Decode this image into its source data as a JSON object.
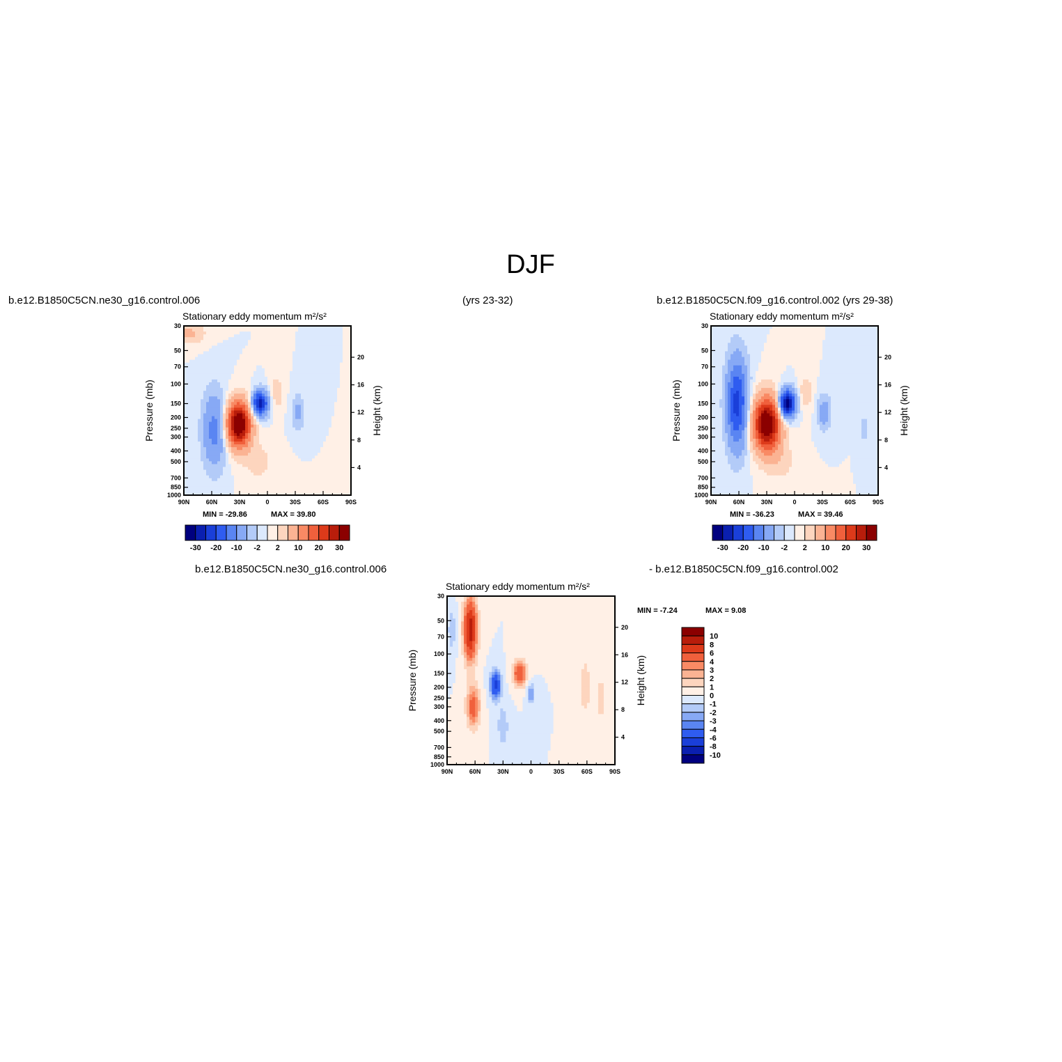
{
  "figure": {
    "title": "DJF",
    "panel1_case": "b.e12.B1850C5CN.ne30_g16.control.006",
    "years1": "(yrs 23-32)",
    "panel2_case": "b.e12.B1850C5CN.f09_g16.control.002 (yrs 29-38)",
    "diff_case_a": "b.e12.B1850C5CN.ne30_g16.control.006",
    "diff_case_b": "- b.e12.B1850C5CN.f09_g16.control.002"
  },
  "colors": {
    "neg": [
      "#00007f",
      "#0a1fb0",
      "#1a3fd9",
      "#2f5cf0",
      "#5a85f2",
      "#87a9f5",
      "#b3cbf8",
      "#dce9fd"
    ],
    "pos": [
      "#fff0e6",
      "#fdd5be",
      "#fbb393",
      "#f98a64",
      "#f0603c",
      "#dd3a1a",
      "#b81d0b",
      "#8b0000"
    ],
    "frame": "#000000"
  },
  "chart_data": [
    {
      "type": "heatmap",
      "id": "p1",
      "title": "Stationary eddy momentum  m²/s²",
      "ylabel": "Pressure (mb)",
      "ylabel_right": "Height (km)",
      "x_ticks": [
        "90N",
        "60N",
        "30N",
        "0",
        "30S",
        "60S",
        "90S"
      ],
      "y_ticks": [
        "30",
        "50",
        "70",
        "100",
        "150",
        "200",
        "250",
        "300",
        "400",
        "500",
        "700",
        "850",
        "1000"
      ],
      "yr_ticks": [
        "20",
        "16",
        "12",
        "8",
        "4"
      ],
      "min_label": "MIN =  -29.86",
      "max_label": "MAX =   39.80",
      "min": -29.86,
      "max": 39.8,
      "colorbar_labels": [
        "-30",
        "-20",
        "-10",
        "-2",
        "2",
        "10",
        "20",
        "30"
      ],
      "features": [
        {
          "lat": 57,
          "p": 260,
          "value": -12,
          "dlat": 9,
          "dlogp": 0.55
        },
        {
          "lat": 31,
          "p": 230,
          "value": 38,
          "dlat": 9,
          "dlogp": 0.32
        },
        {
          "lat": 8,
          "p": 150,
          "value": -28,
          "dlat": 6,
          "dlogp": 0.18
        },
        {
          "lat": -33,
          "p": 180,
          "value": -6,
          "dlat": 5,
          "dlogp": 0.25
        },
        {
          "lat": 85,
          "p": 35,
          "value": 6,
          "dlat": 12,
          "dlogp": 0.15
        },
        {
          "lat": -10,
          "p": 120,
          "value": 4,
          "dlat": 5,
          "dlogp": 0.25
        },
        {
          "lat": 10,
          "p": 500,
          "value": 3,
          "dlat": 12,
          "dlogp": 0.3
        }
      ]
    },
    {
      "type": "heatmap",
      "id": "p2",
      "title": "Stationary eddy momentum  m²/s²",
      "ylabel": "Pressure (mb)",
      "ylabel_right": "Height (km)",
      "x_ticks": [
        "90N",
        "60N",
        "30N",
        "0",
        "30S",
        "60S",
        "90S"
      ],
      "y_ticks": [
        "30",
        "50",
        "70",
        "100",
        "150",
        "200",
        "250",
        "300",
        "400",
        "500",
        "700",
        "850",
        "1000"
      ],
      "yr_ticks": [
        "20",
        "16",
        "12",
        "8",
        "4"
      ],
      "min_label": "MIN =  -36.23",
      "max_label": "MAX =   39.46",
      "min": -36.23,
      "max": 39.46,
      "colorbar_labels": [
        "-30",
        "-20",
        "-10",
        "-2",
        "2",
        "10",
        "20",
        "30"
      ],
      "features": [
        {
          "lat": 62,
          "p": 150,
          "value": -22,
          "dlat": 8,
          "dlogp": 0.65
        },
        {
          "lat": 30,
          "p": 230,
          "value": 38,
          "dlat": 10,
          "dlogp": 0.38
        },
        {
          "lat": 8,
          "p": 150,
          "value": -34,
          "dlat": 6,
          "dlogp": 0.2
        },
        {
          "lat": -32,
          "p": 180,
          "value": -8,
          "dlat": 5,
          "dlogp": 0.25
        },
        {
          "lat": -75,
          "p": 250,
          "value": -4,
          "dlat": 3,
          "dlogp": 0.2
        },
        {
          "lat": -12,
          "p": 120,
          "value": 4,
          "dlat": 5,
          "dlogp": 0.25
        },
        {
          "lat": 15,
          "p": 500,
          "value": 3,
          "dlat": 12,
          "dlogp": 0.3
        }
      ]
    },
    {
      "type": "heatmap",
      "id": "p3",
      "title": "Stationary eddy momentum  m²/s²",
      "ylabel": "Pressure (mb)",
      "ylabel_right": "Height (km)",
      "x_ticks": [
        "90N",
        "60N",
        "30N",
        "0",
        "30S",
        "60S",
        "90S"
      ],
      "y_ticks": [
        "30",
        "50",
        "70",
        "100",
        "150",
        "200",
        "250",
        "300",
        "400",
        "500",
        "700",
        "850",
        "1000"
      ],
      "yr_ticks": [
        "20",
        "16",
        "12",
        "8",
        "4"
      ],
      "min_label": "MIN =   -7.24",
      "max_label": "MAX =    9.08",
      "min": -7.24,
      "max": 9.08,
      "colorbar_labels": [
        "10",
        "8",
        "6",
        "4",
        "3",
        "2",
        "1",
        "0",
        "-1",
        "-2",
        "-3",
        "-4",
        "-6",
        "-8",
        "-10"
      ],
      "features": [
        {
          "lat": 65,
          "p": 60,
          "value": 9,
          "dlat": 5,
          "dlogp": 0.45
        },
        {
          "lat": 62,
          "p": 300,
          "value": 5,
          "dlat": 5,
          "dlogp": 0.3
        },
        {
          "lat": 38,
          "p": 190,
          "value": -7,
          "dlat": 4,
          "dlogp": 0.2
        },
        {
          "lat": 12,
          "p": 150,
          "value": 6,
          "dlat": 5,
          "dlogp": 0.18
        },
        {
          "lat": 0,
          "p": 230,
          "value": -3,
          "dlat": 3,
          "dlogp": 0.15
        },
        {
          "lat": 30,
          "p": 450,
          "value": -2,
          "dlat": 4,
          "dlogp": 0.3
        },
        {
          "lat": 85,
          "p": 60,
          "value": -2,
          "dlat": 3,
          "dlogp": 0.3
        },
        {
          "lat": -58,
          "p": 200,
          "value": 2,
          "dlat": 4,
          "dlogp": 0.4
        },
        {
          "lat": -75,
          "p": 250,
          "value": 2,
          "dlat": 3,
          "dlogp": 0.3
        }
      ]
    }
  ]
}
